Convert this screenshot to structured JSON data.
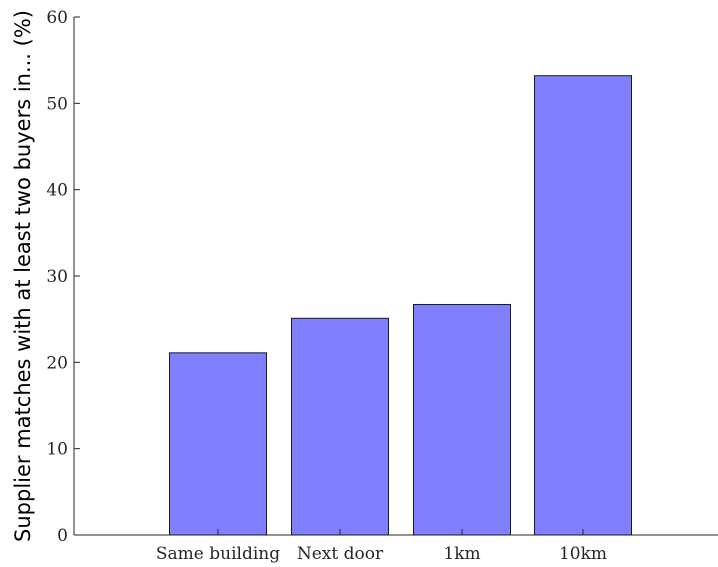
{
  "chart_data": {
    "type": "bar",
    "title": "",
    "xlabel": "",
    "ylabel": "Supplier matches with at least two buyers in... (%)",
    "categories": [
      "Same building",
      "Next door",
      "1km",
      "10km"
    ],
    "values": [
      21.1,
      25.1,
      26.7,
      53.2
    ],
    "ylim": [
      0,
      60
    ],
    "yticks": [
      0,
      10,
      20,
      30,
      40,
      50,
      60
    ],
    "grid": false,
    "bar_color": "#8080FF",
    "bar_edge_color": "#1a1a1a"
  }
}
